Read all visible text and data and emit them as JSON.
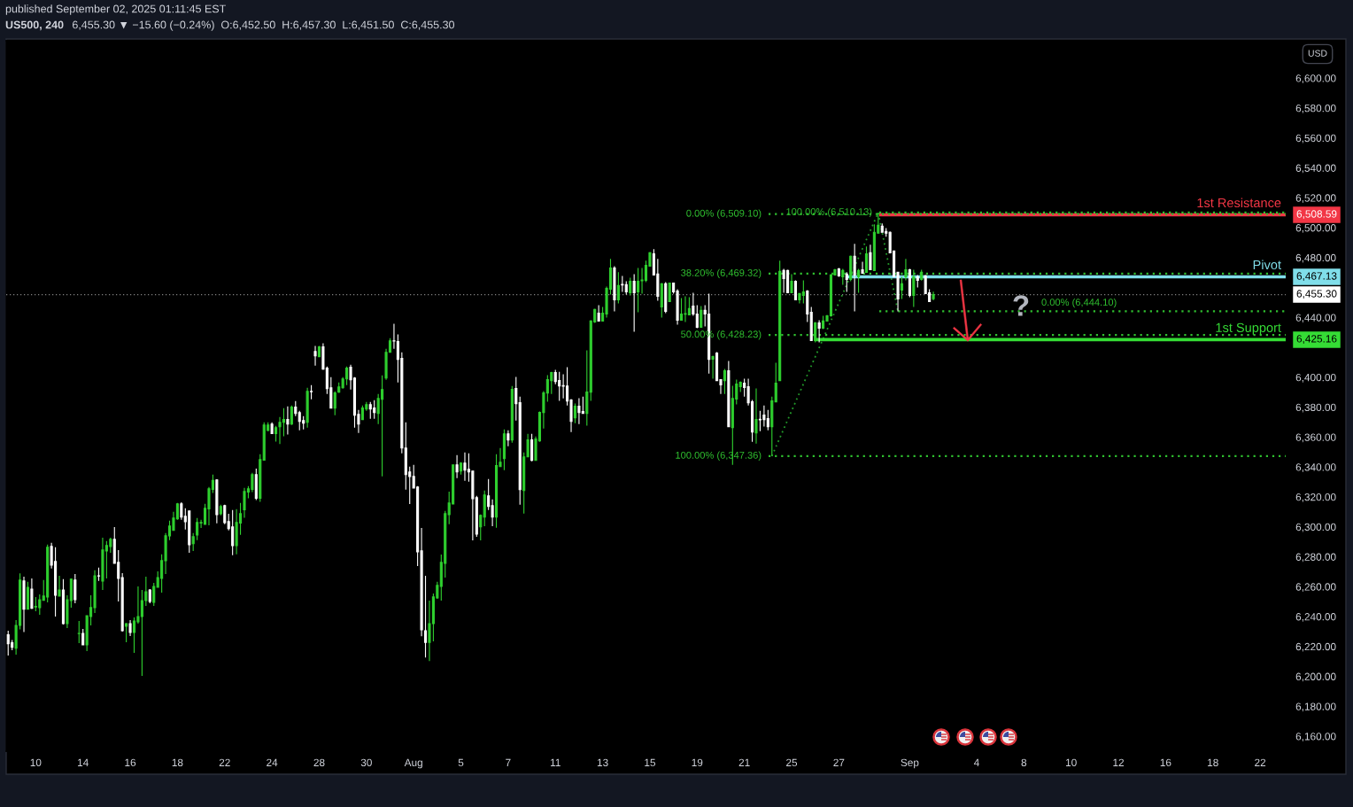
{
  "chart_data": {
    "type": "candlestick",
    "title": "US500, 240",
    "subtitle": "6,455.30 ▼ −15.60 (−0.24%)  O:6,452.50  H:6,457.30  L:6,451.50  C:6,455.30",
    "ylabel": "USD",
    "annotations": [
      "published September 02, 2025 01:11:45 EST",
      "?",
      "6,508.59",
      "6,467.13",
      "6,455.30",
      "6,425.16"
    ],
    "categories": [
      null,
      null,
      null,
      null,
      null,
      null,
      null,
      "10",
      null,
      null,
      null,
      null,
      null,
      null,
      null,
      null,
      null,
      null,
      null,
      "14",
      null,
      null,
      null,
      null,
      null,
      null,
      null,
      null,
      null,
      null,
      null,
      "16",
      null,
      null,
      null,
      null,
      null,
      null,
      null,
      null,
      null,
      null,
      null,
      "18",
      null,
      null,
      null,
      null,
      null,
      null,
      null,
      null,
      null,
      null,
      null,
      "22",
      null,
      null,
      null,
      null,
      null,
      null,
      null,
      null,
      null,
      null,
      null,
      "24",
      null,
      null,
      null,
      null,
      null,
      null,
      null,
      null,
      null,
      null,
      null,
      "28",
      null,
      null,
      null,
      null,
      null,
      null,
      null,
      null,
      null,
      null,
      null,
      "30",
      null,
      null,
      null,
      null,
      null,
      null,
      null,
      null,
      null,
      null,
      null,
      "Aug",
      null,
      null,
      null,
      null,
      null,
      null,
      null,
      null,
      null,
      null,
      null,
      "5",
      null,
      null,
      null,
      null,
      null,
      null,
      null,
      null,
      null,
      null,
      null,
      "7",
      null,
      null,
      null,
      null,
      null,
      null,
      null,
      null,
      null,
      null,
      null,
      "11",
      null,
      null,
      null,
      null,
      null,
      null,
      null,
      null,
      null,
      null,
      null,
      "13",
      null,
      null,
      null,
      null,
      null,
      null,
      null,
      null,
      null,
      null,
      null,
      "15",
      null,
      null,
      null,
      null,
      null,
      null,
      null,
      null,
      null,
      null,
      null,
      "19",
      null,
      null,
      null,
      null,
      null,
      null,
      null,
      null,
      null,
      null,
      null,
      "21",
      null,
      null,
      null,
      null,
      null,
      null,
      null,
      null,
      null,
      null,
      null,
      "25",
      null,
      null,
      null,
      null,
      null,
      null,
      null,
      null,
      null,
      null,
      null,
      "27",
      null,
      null,
      null,
      null,
      null,
      null,
      null,
      null,
      null,
      null,
      null,
      null,
      null,
      null,
      null,
      null,
      null,
      "Sep",
      null,
      null,
      null,
      null,
      null,
      null,
      null,
      null,
      null,
      null,
      null,
      null,
      null,
      null,
      null,
      null,
      "4",
      null,
      null,
      null,
      null,
      null,
      null,
      null,
      null,
      null,
      null,
      null,
      "8",
      null,
      null,
      null,
      null,
      null,
      null,
      null,
      null,
      null,
      null,
      null,
      "10",
      null,
      null,
      null,
      null,
      null,
      null,
      null,
      null,
      null,
      null,
      null,
      "12",
      null,
      null,
      null,
      null,
      null,
      null,
      null,
      null,
      null,
      null,
      null,
      "16",
      null,
      null,
      null,
      null,
      null,
      null,
      null,
      null,
      null,
      null,
      null,
      "18",
      null,
      null,
      null,
      null,
      null,
      null,
      null,
      null,
      null,
      null,
      null,
      "22",
      null,
      null,
      null,
      null,
      null,
      null
    ],
    "ohlc": [
      [
        6227.8,
        6230.6,
        6214.0,
        6221.9
      ],
      [
        6222.5,
        6224.4,
        6217.5,
        6219.5
      ],
      [
        6218.9,
        6237.7,
        6214.5,
        6234.1
      ],
      [
        6234.1,
        6268.9,
        6231.4,
        6264.4
      ],
      [
        6263.8,
        6266.7,
        6229.6,
        6245.0
      ],
      [
        6245.0,
        6263.2,
        6244.6,
        6259.6
      ],
      [
        6258.4,
        6265.5,
        6245.0,
        6245.6
      ],
      [
        6246.4,
        6253.1,
        6243.6,
        6246.8
      ],
      [
        6246.0,
        6254.9,
        6241.2,
        6251.3
      ],
      [
        6250.9,
        6264.4,
        6250.7,
        6253.7
      ],
      [
        6253.1,
        6288.1,
        6249.5,
        6286.3
      ],
      [
        6286.9,
        6289.3,
        6272.1,
        6274.4
      ],
      [
        6276.8,
        6286.3,
        6240.0,
        6254.3
      ],
      [
        6253.7,
        6267.3,
        6253.5,
        6257.8
      ],
      [
        6257.8,
        6265.0,
        6234.7,
        6235.3
      ],
      [
        6235.3,
        6254.3,
        6232.3,
        6251.3
      ],
      [
        6250.7,
        6265.5,
        6246.0,
        6265.0
      ],
      [
        6264.4,
        6268.5,
        6248.9,
        6251.3
      ],
      [
        6228.6,
        6237.1,
        6222.3,
        6228.8
      ],
      [
        6228.8,
        6231.7,
        6220.9,
        6221.1
      ],
      [
        6221.1,
        6240.8,
        6216.9,
        6240.6
      ],
      [
        6240.0,
        6254.3,
        6234.1,
        6246.0
      ],
      [
        6246.0,
        6270.9,
        6242.4,
        6267.3
      ],
      [
        6267.3,
        6272.7,
        6263.8,
        6267.1
      ],
      [
        6263.8,
        6292.8,
        6257.8,
        6284.5
      ],
      [
        6283.9,
        6290.5,
        6265.5,
        6287.5
      ],
      [
        6286.9,
        6292.8,
        6282.7,
        6291.6
      ],
      [
        6291.6,
        6299.9,
        6275.4,
        6275.6
      ],
      [
        6276.2,
        6284.5,
        6250.1,
        6265.5
      ],
      [
        6266.1,
        6269.1,
        6230.0,
        6230.6
      ],
      [
        6233.5,
        6235.7,
        6222.8,
        6235.3
      ],
      [
        6235.3,
        6237.7,
        6227.0,
        6229.4
      ],
      [
        6229.4,
        6239.5,
        6215.7,
        6237.1
      ],
      [
        6236.5,
        6260.2,
        6235.3,
        6240.0
      ],
      [
        6240.0,
        6257.8,
        6200.3,
        6250.7
      ],
      [
        6250.7,
        6266.7,
        6247.2,
        6256.6
      ],
      [
        6257.8,
        6258.4,
        6248.9,
        6250.1
      ],
      [
        6249.5,
        6262.6,
        6247.2,
        6260.2
      ],
      [
        6259.6,
        6270.3,
        6259.4,
        6266.1
      ],
      [
        6265.5,
        6281.6,
        6256.0,
        6277.4
      ],
      [
        6277.4,
        6295.8,
        6268.5,
        6294.0
      ],
      [
        6294.0,
        6304.1,
        6291.1,
        6300.5
      ],
      [
        6297.6,
        6310.0,
        6297.4,
        6305.9
      ],
      [
        6305.3,
        6316.0,
        6304.7,
        6315.4
      ],
      [
        6315.4,
        6316.5,
        6304.7,
        6306.5
      ],
      [
        6307.1,
        6312.4,
        6298.2,
        6303.5
      ],
      [
        6310.6,
        6310.8,
        6282.7,
        6288.1
      ],
      [
        6288.7,
        6295.8,
        6283.9,
        6293.4
      ],
      [
        6294.6,
        6305.9,
        6291.1,
        6302.9
      ],
      [
        6302.5,
        6304.7,
        6299.3,
        6302.9
      ],
      [
        6301.7,
        6315.4,
        6301.5,
        6312.4
      ],
      [
        6312.0,
        6326.6,
        6301.1,
        6325.4
      ],
      [
        6325.1,
        6334.9,
        6322.7,
        6331.0
      ],
      [
        6331.4,
        6331.9,
        6302.3,
        6308.2
      ],
      [
        6308.8,
        6314.8,
        6307.7,
        6313.6
      ],
      [
        6314.2,
        6314.8,
        6301.7,
        6302.9
      ],
      [
        6303.5,
        6308.8,
        6297.6,
        6298.8
      ],
      [
        6299.9,
        6311.2,
        6281.0,
        6287.5
      ],
      [
        6287.5,
        6311.8,
        6281.6,
        6302.9
      ],
      [
        6302.5,
        6316.0,
        6294.6,
        6308.8
      ],
      [
        6311.4,
        6326.0,
        6306.0,
        6323.6
      ],
      [
        6323.2,
        6327.2,
        6319.1,
        6325.4
      ],
      [
        6325.0,
        6336.1,
        6323.2,
        6334.9
      ],
      [
        6334.9,
        6339.0,
        6317.9,
        6319.1
      ],
      [
        6319.1,
        6348.5,
        6316.7,
        6345.0
      ],
      [
        6344.6,
        6369.9,
        6344.4,
        6368.1
      ],
      [
        6364.5,
        6369.9,
        6363.9,
        6368.1
      ],
      [
        6368.7,
        6369.9,
        6362.2,
        6362.4
      ],
      [
        6362.4,
        6367.5,
        6357.0,
        6366.3
      ],
      [
        6366.9,
        6373.4,
        6355.3,
        6369.9
      ],
      [
        6369.9,
        6379.4,
        6360.6,
        6371.7
      ],
      [
        6371.7,
        6380.6,
        6361.8,
        6368.7
      ],
      [
        6368.7,
        6381.1,
        6368.1,
        6380.0
      ],
      [
        6380.0,
        6384.1,
        6374.0,
        6375.8
      ],
      [
        6376.4,
        6377.6,
        6364.5,
        6370.5
      ],
      [
        6371.1,
        6374.0,
        6365.1,
        6369.3
      ],
      [
        6369.9,
        6393.0,
        6366.3,
        6390.6
      ],
      [
        6390.6,
        6394.8,
        6385.3,
        6390.4
      ],
      [
        6417.3,
        6420.9,
        6407.8,
        6414.4
      ],
      [
        6413.8,
        6420.9,
        6413.8,
        6420.3
      ],
      [
        6420.3,
        6422.7,
        6404.9,
        6405.5
      ],
      [
        6406.1,
        6407.2,
        6388.9,
        6392.4
      ],
      [
        6393.0,
        6400.1,
        6379.2,
        6379.4
      ],
      [
        6379.4,
        6390.6,
        6374.6,
        6389.5
      ],
      [
        6390.0,
        6396.6,
        6389.5,
        6393.6
      ],
      [
        6393.0,
        6400.1,
        6392.4,
        6398.9
      ],
      [
        6398.9,
        6407.2,
        6394.8,
        6406.1
      ],
      [
        6406.7,
        6408.4,
        6391.8,
        6398.3
      ],
      [
        6399.5,
        6400.1,
        6366.3,
        6374.6
      ],
      [
        6375.2,
        6378.2,
        6362.8,
        6368.7
      ],
      [
        6371.7,
        6381.1,
        6371.5,
        6379.4
      ],
      [
        6378.8,
        6383.5,
        6377.6,
        6381.7
      ],
      [
        6381.7,
        6383.5,
        6372.3,
        6378.8
      ],
      [
        6379.4,
        6384.7,
        6372.3,
        6376.4
      ],
      [
        6375.8,
        6388.9,
        6368.7,
        6385.9
      ],
      [
        6385.3,
        6401.3,
        6333.7,
        6391.8
      ],
      [
        6399.5,
        6419.1,
        6398.3,
        6416.7
      ],
      [
        6416.7,
        6426.2,
        6416.5,
        6424.4
      ],
      [
        6424.4,
        6435.7,
        6419.1,
        6424.2
      ],
      [
        6423.9,
        6428.6,
        6396.6,
        6412.0
      ],
      [
        6412.6,
        6416.7,
        6349.1,
        6352.7
      ],
      [
        6352.7,
        6369.9,
        6324.8,
        6334.9
      ],
      [
        6336.7,
        6340.2,
        6315.3,
        6333.7
      ],
      [
        6333.7,
        6341.4,
        6325.8,
        6326.0
      ],
      [
        6326.6,
        6327.2,
        6273.8,
        6283.3
      ],
      [
        6283.9,
        6299.3,
        6226.9,
        6231.1
      ],
      [
        6230.5,
        6267.3,
        6212.7,
        6222.8
      ],
      [
        6222.8,
        6250.7,
        6210.3,
        6235.3
      ],
      [
        6235.3,
        6255.4,
        6223.4,
        6253.1
      ],
      [
        6252.5,
        6263.2,
        6251.9,
        6260.8
      ],
      [
        6260.2,
        6281.5,
        6250.7,
        6276.2
      ],
      [
        6275.6,
        6310.6,
        6266.1,
        6308.8
      ],
      [
        6308.2,
        6323.6,
        6301.7,
        6315.9
      ],
      [
        6315.3,
        6341.4,
        6315.3,
        6341.4
      ],
      [
        6341.4,
        6347.9,
        6332.5,
        6336.7
      ],
      [
        6337.3,
        6343.2,
        6334.9,
        6342.6
      ],
      [
        6342.6,
        6349.7,
        6330.8,
        6337.9
      ],
      [
        6338.5,
        6349.1,
        6330.2,
        6336.7
      ],
      [
        6337.3,
        6337.3,
        6291.0,
        6318.9
      ],
      [
        6319.5,
        6320.7,
        6293.4,
        6295.2
      ],
      [
        6300.0,
        6308.3,
        6291.0,
        6307.7
      ],
      [
        6306.5,
        6324.3,
        6300.5,
        6321.3
      ],
      [
        6320.7,
        6332.0,
        6311.2,
        6313.6
      ],
      [
        6314.2,
        6318.3,
        6300.5,
        6306.5
      ],
      [
        6306.5,
        6348.6,
        6299.4,
        6340.9
      ],
      [
        6340.3,
        6352.7,
        6340.1,
        6343.2
      ],
      [
        6345.6,
        6365.2,
        6337.9,
        6362.2
      ],
      [
        6362.2,
        6364.6,
        6353.9,
        6358.1
      ],
      [
        6358.1,
        6394.2,
        6356.3,
        6391.9
      ],
      [
        6392.5,
        6400.2,
        6371.1,
        6382.4
      ],
      [
        6383.0,
        6387.1,
        6314.8,
        6324.9
      ],
      [
        6324.3,
        6349.8,
        6308.9,
        6346.8
      ],
      [
        6346.8,
        6362.2,
        6346.6,
        6358.1
      ],
      [
        6358.1,
        6362.2,
        6343.8,
        6344.4
      ],
      [
        6344.4,
        6360.4,
        6344.2,
        6358.7
      ],
      [
        6357.5,
        6377.1,
        6356.9,
        6376.5
      ],
      [
        6376.5,
        6390.7,
        6365.8,
        6389.5
      ],
      [
        6389.5,
        6401.4,
        6383.6,
        6398.4
      ],
      [
        6397.8,
        6403.7,
        6388.9,
        6403.1
      ],
      [
        6403.1,
        6404.9,
        6395.4,
        6397.2
      ],
      [
        6397.8,
        6403.7,
        6384.2,
        6394.2
      ],
      [
        6394.4,
        6402.0,
        6385.9,
        6394.0
      ],
      [
        6394.2,
        6406.7,
        6381.2,
        6384.2
      ],
      [
        6384.8,
        6385.4,
        6363.4,
        6370.5
      ],
      [
        6372.9,
        6382.4,
        6369.3,
        6380.6
      ],
      [
        6380.6,
        6386.0,
        6368.7,
        6376.5
      ],
      [
        6377.1,
        6387.1,
        6375.7,
        6375.9
      ],
      [
        6375.9,
        6418.0,
        6367.6,
        6390.1
      ],
      [
        6390.1,
        6438.1,
        6384.2,
        6437.6
      ],
      [
        6437.0,
        6445.9,
        6436.4,
        6445.3
      ],
      [
        6442.9,
        6448.2,
        6437.4,
        6437.6
      ],
      [
        6437.6,
        6447.0,
        6437.4,
        6442.9
      ],
      [
        6442.3,
        6460.7,
        6439.9,
        6459.5
      ],
      [
        6458.9,
        6479.1,
        6455.3,
        6473.1
      ],
      [
        6473.1,
        6474.3,
        6444.1,
        6451.8
      ],
      [
        6451.8,
        6470.2,
        6449.4,
        6461.3
      ],
      [
        6462.1,
        6467.8,
        6457.1,
        6461.7
      ],
      [
        6461.9,
        6464.2,
        6455.3,
        6457.1
      ],
      [
        6456.5,
        6466.6,
        6454.7,
        6464.2
      ],
      [
        6464.2,
        6469.0,
        6430.4,
        6456.5
      ],
      [
        6457.1,
        6473.1,
        6443.5,
        6464.2
      ],
      [
        6464.6,
        6473.1,
        6455.9,
        6465.0
      ],
      [
        6464.8,
        6477.9,
        6463.6,
        6474.9
      ],
      [
        6474.3,
        6483.8,
        6474.1,
        6483.2
      ],
      [
        6482.6,
        6485.6,
        6468.2,
        6468.4
      ],
      [
        6469.0,
        6479.1,
        6451.2,
        6454.2
      ],
      [
        6447.0,
        6463.0,
        6439.9,
        6462.5
      ],
      [
        6462.5,
        6463.6,
        6442.9,
        6444.1
      ],
      [
        6450.6,
        6463.0,
        6450.6,
        6463.0
      ],
      [
        6463.0,
        6463.0,
        6455.9,
        6457.1
      ],
      [
        6457.7,
        6458.9,
        6435.2,
        6438.1
      ],
      [
        6438.1,
        6453.0,
        6437.9,
        6442.3
      ],
      [
        6442.1,
        6454.2,
        6436.9,
        6442.5
      ],
      [
        6441.7,
        6453.6,
        6441.5,
        6445.9
      ],
      [
        6447.6,
        6456.5,
        6441.1,
        6442.3
      ],
      [
        6442.3,
        6448.2,
        6432.8,
        6433.4
      ],
      [
        6433.4,
        6447.6,
        6433.2,
        6444.7
      ],
      [
        6444.7,
        6448.2,
        6434.0,
        6442.3
      ],
      [
        6442.3,
        6455.9,
        6402.5,
        6412.0
      ],
      [
        6412.1,
        6414.4,
        6399.0,
        6413.8
      ],
      [
        6416.2,
        6416.8,
        6397.6,
        6397.8
      ],
      [
        6398.4,
        6398.4,
        6388.9,
        6394.9
      ],
      [
        6397.8,
        6405.5,
        6388.9,
        6404.4
      ],
      [
        6404.4,
        6410.9,
        6366.8,
        6367.0
      ],
      [
        6366.4,
        6394.3,
        6341.5,
        6385.9
      ],
      [
        6385.4,
        6398.4,
        6381.8,
        6395.5
      ],
      [
        6393.7,
        6397.2,
        6390.1,
        6396.6
      ],
      [
        6396.0,
        6399.0,
        6387.1,
        6393.1
      ],
      [
        6393.7,
        6399.0,
        6381.2,
        6383.0
      ],
      [
        6383.6,
        6384.8,
        6356.9,
        6363.4
      ],
      [
        6362.8,
        6392.5,
        6355.7,
        6371.7
      ],
      [
        6371.9,
        6377.6,
        6364.0,
        6371.5
      ],
      [
        6374.7,
        6381.2,
        6367.0,
        6371.7
      ],
      [
        6372.3,
        6378.2,
        6364.6,
        6367.0
      ],
      [
        6367.0,
        6387.1,
        6347.4,
        6384.2
      ],
      [
        6383.6,
        6409.7,
        6383.4,
        6396.0
      ],
      [
        6397.8,
        6477.9,
        6397.6,
        6470.8
      ],
      [
        6471.4,
        6472.5,
        6456.5,
        6466.0
      ],
      [
        6471.4,
        6471.9,
        6456.3,
        6456.5
      ],
      [
        6456.5,
        6469.0,
        6456.3,
        6464.2
      ],
      [
        6464.2,
        6464.8,
        6451.6,
        6451.8
      ],
      [
        6451.8,
        6456.0,
        6449.4,
        6456.0
      ],
      [
        6454.8,
        6464.8,
        6449.4,
        6457.1
      ],
      [
        6457.7,
        6458.3,
        6437.0,
        6442.3
      ],
      [
        6443.5,
        6447.0,
        6424.3,
        6424.5
      ],
      [
        6424.5,
        6437.0,
        6423.3,
        6436.4
      ],
      [
        6436.4,
        6438.1,
        6423.3,
        6432.8
      ],
      [
        6432.8,
        6441.1,
        6432.2,
        6437.6
      ],
      [
        6437.6,
        6441.7,
        6437.4,
        6441.1
      ],
      [
        6441.1,
        6469.0,
        6440.5,
        6468.4
      ],
      [
        6468.4,
        6472.5,
        6468.2,
        6471.9
      ],
      [
        6472.5,
        6473.1,
        6467.2,
        6467.8
      ],
      [
        6467.2,
        6472.5,
        6461.9,
        6471.4
      ],
      [
        6469.0,
        6470.2,
        6457.1,
        6465.4
      ],
      [
        6465.4,
        6481.4,
        6464.2,
        6480.9
      ],
      [
        6480.9,
        6489.2,
        6444.1,
        6468.4
      ],
      [
        6467.2,
        6472.5,
        6456.5,
        6471.4
      ],
      [
        6471.9,
        6477.3,
        6469.4,
        6469.6
      ],
      [
        6470.2,
        6487.4,
        6470.0,
        6482.6
      ],
      [
        6483.2,
        6488.6,
        6471.8,
        6472.0
      ],
      [
        6471.4,
        6502.2,
        6471.2,
        6496.9
      ],
      [
        6496.3,
        6510.1,
        6496.1,
        6501.6
      ],
      [
        6501.0,
        6502.8,
        6496.7,
        6496.9
      ],
      [
        6497.5,
        6499.8,
        6493.9,
        6496.3
      ],
      [
        6496.9,
        6497.5,
        6483.0,
        6483.2
      ],
      [
        6484.4,
        6484.4,
        6467.0,
        6467.2
      ],
      [
        6470.2,
        6470.2,
        6444.1,
        6452.4
      ],
      [
        6458.3,
        6467.2,
        6452.4,
        6462.5
      ],
      [
        6467.2,
        6479.1,
        6464.8,
        6471.9
      ],
      [
        6471.9,
        6472.5,
        6453.6,
        6454.8
      ],
      [
        6454.8,
        6471.9,
        6447.0,
        6467.2
      ],
      [
        6467.2,
        6468.4,
        6460.1,
        6464.8
      ],
      [
        6465.4,
        6471.9,
        6464.6,
        6470.2
      ],
      [
        6467.8,
        6468.4,
        6455.7,
        6455.9
      ],
      [
        6456.5,
        6458.9,
        6450.4,
        6450.6
      ],
      [
        6452.5,
        6457.3,
        6451.5,
        6455.3
      ],
      null,
      null,
      null,
      null,
      null,
      null,
      null,
      null,
      null,
      null,
      null,
      null,
      null,
      null,
      null,
      null,
      null,
      null,
      null,
      null,
      null,
      null,
      null,
      null,
      null,
      null,
      null,
      null,
      null,
      null,
      null,
      null,
      null,
      null,
      null,
      null,
      null,
      null,
      null,
      null,
      null,
      null,
      null,
      null,
      null,
      null,
      null,
      null,
      null,
      null,
      null,
      null,
      null,
      null,
      null,
      null,
      null,
      null,
      null,
      null,
      null,
      null,
      null,
      null,
      null,
      null,
      null,
      null,
      null,
      null,
      null,
      null,
      null,
      null,
      null,
      null,
      null,
      null,
      null,
      null,
      null,
      null,
      null,
      null,
      null,
      null,
      null,
      null,
      null
    ],
    "colors": [
      "#ffffff",
      "#ffffff",
      "#2fd02f",
      "#2fd02f",
      "#ffffff",
      "#2fd02f",
      "#ffffff",
      "#2fd02f",
      "#2fd02f",
      "#2fd02f",
      "#2fd02f",
      "#ffffff",
      "#ffffff",
      "#2fd02f",
      "#ffffff",
      "#2fd02f",
      "#2fd02f",
      "#ffffff",
      "#2fd02f",
      "#ffffff",
      "#2fd02f",
      "#2fd02f",
      "#2fd02f",
      "#ffffff",
      "#2fd02f",
      "#2fd02f",
      "#2fd02f",
      "#ffffff",
      "#ffffff",
      "#ffffff",
      "#2fd02f",
      "#ffffff",
      "#2fd02f",
      "#2fd02f",
      "#2fd02f",
      "#2fd02f",
      "#ffffff",
      "#2fd02f",
      "#2fd02f",
      "#2fd02f",
      "#2fd02f",
      "#2fd02f",
      "#2fd02f",
      "#2fd02f",
      "#ffffff",
      "#ffffff",
      "#ffffff",
      "#2fd02f",
      "#2fd02f",
      "#2fd02f",
      "#2fd02f",
      "#2fd02f",
      "#2fd02f",
      "#ffffff",
      "#2fd02f",
      "#ffffff",
      "#ffffff",
      "#ffffff",
      "#2fd02f",
      "#2fd02f",
      "#2fd02f",
      "#2fd02f",
      "#2fd02f",
      "#ffffff",
      "#2fd02f",
      "#2fd02f",
      "#2fd02f",
      "#ffffff",
      "#2fd02f",
      "#2fd02f",
      "#2fd02f",
      "#ffffff",
      "#2fd02f",
      "#ffffff",
      "#ffffff",
      "#ffffff",
      "#2fd02f",
      "#ffffff",
      "#ffffff",
      "#2fd02f",
      "#ffffff",
      "#ffffff",
      "#ffffff",
      "#2fd02f",
      "#2fd02f",
      "#2fd02f",
      "#2fd02f",
      "#ffffff",
      "#ffffff",
      "#ffffff",
      "#2fd02f",
      "#2fd02f",
      "#ffffff",
      "#ffffff",
      "#2fd02f",
      "#2fd02f",
      "#2fd02f",
      "#2fd02f",
      "#ffffff",
      "#ffffff",
      "#ffffff",
      "#ffffff",
      "#ffffff",
      "#ffffff",
      "#ffffff",
      "#ffffff",
      "#ffffff",
      "#2fd02f",
      "#2fd02f",
      "#2fd02f",
      "#2fd02f",
      "#2fd02f",
      "#2fd02f",
      "#2fd02f",
      "#ffffff",
      "#2fd02f",
      "#ffffff",
      "#ffffff",
      "#ffffff",
      "#ffffff",
      "#2fd02f",
      "#2fd02f",
      "#ffffff",
      "#ffffff",
      "#2fd02f",
      "#2fd02f",
      "#2fd02f",
      "#ffffff",
      "#2fd02f",
      "#ffffff",
      "#ffffff",
      "#2fd02f",
      "#2fd02f",
      "#ffffff",
      "#2fd02f",
      "#2fd02f",
      "#2fd02f",
      "#2fd02f",
      "#2fd02f",
      "#ffffff",
      "#ffffff",
      "#ffffff",
      "#ffffff",
      "#ffffff",
      "#2fd02f",
      "#ffffff",
      "#ffffff",
      "#2fd02f",
      "#2fd02f",
      "#2fd02f",
      "#ffffff",
      "#2fd02f",
      "#2fd02f",
      "#2fd02f",
      "#ffffff",
      "#2fd02f",
      "#ffffff",
      "#ffffff",
      "#2fd02f",
      "#ffffff",
      "#2fd02f",
      "#2fd02f",
      "#2fd02f",
      "#2fd02f",
      "#ffffff",
      "#ffffff",
      "#2fd02f",
      "#ffffff",
      "#2fd02f",
      "#ffffff",
      "#ffffff",
      "#2fd02f",
      "#2fd02f",
      "#2fd02f",
      "#ffffff",
      "#ffffff",
      "#2fd02f",
      "#ffffff",
      "#ffffff",
      "#2fd02f",
      "#ffffff",
      "#ffffff",
      "#2fd02f",
      "#ffffff",
      "#2fd02f",
      "#2fd02f",
      "#2fd02f",
      "#ffffff",
      "#ffffff",
      "#ffffff",
      "#2fd02f",
      "#ffffff",
      "#ffffff",
      "#ffffff",
      "#2fd02f",
      "#2fd02f",
      "#2fd02f",
      "#ffffff",
      "#ffffff",
      "#2fd02f",
      "#ffffff",
      "#2fd02f",
      "#2fd02f",
      "#ffffff",
      "#ffffff",
      "#2fd02f",
      "#ffffff",
      "#2fd02f",
      "#2fd02f",
      "#2fd02f",
      "#2fd02f",
      "#ffffff",
      "#2fd02f",
      "#ffffff",
      "#2fd02f",
      "#ffffff",
      "#2fd02f",
      "#ffffff",
      "#2fd02f",
      "#ffffff",
      "#2fd02f",
      "#2fd02f",
      "#ffffff",
      "#ffffff",
      "#ffffff",
      "#ffffff",
      "#ffffff",
      "#2fd02f",
      "#2fd02f",
      "#ffffff",
      "#2fd02f",
      "#ffffff",
      "#2fd02f",
      "#ffffff",
      "#ffffff",
      "#2fd02f",
      null,
      null,
      null,
      null,
      null,
      null,
      null,
      null,
      null,
      null,
      null,
      null,
      null,
      null,
      null,
      null,
      null,
      null,
      null,
      null,
      null,
      null,
      null,
      null,
      null,
      null,
      null,
      null,
      null,
      null,
      null,
      null,
      null,
      null,
      null,
      null,
      null,
      null,
      null,
      null,
      null,
      null,
      null,
      null,
      null,
      null,
      null,
      null,
      null,
      null,
      null,
      null,
      null,
      null,
      null,
      null,
      null,
      null,
      null,
      null,
      null,
      null,
      null,
      null,
      null,
      null,
      null,
      null,
      null,
      null,
      null,
      null,
      null,
      null,
      null,
      null,
      null,
      null,
      null,
      null,
      null,
      null,
      null,
      null,
      null,
      null,
      null,
      null,
      null
    ],
    "series": [
      {
        "type": "line",
        "color": "#229b2a",
        "line_style": "dotted",
        "values": [
          null,
          null,
          null,
          null,
          null,
          null,
          null,
          null,
          null,
          null,
          null,
          null,
          null,
          null,
          null,
          null,
          null,
          null,
          null,
          null,
          null,
          null,
          null,
          null,
          null,
          null,
          null,
          null,
          null,
          null,
          null,
          null,
          null,
          null,
          null,
          null,
          null,
          null,
          null,
          null,
          null,
          null,
          null,
          null,
          null,
          null,
          null,
          null,
          null,
          null,
          null,
          null,
          null,
          null,
          null,
          null,
          null,
          null,
          null,
          null,
          null,
          null,
          null,
          null,
          null,
          null,
          null,
          null,
          null,
          null,
          null,
          null,
          null,
          null,
          null,
          null,
          null,
          null,
          null,
          null,
          null,
          null,
          null,
          null,
          null,
          null,
          null,
          null,
          null,
          null,
          null,
          null,
          null,
          null,
          null,
          null,
          null,
          null,
          null,
          null,
          null,
          null,
          null,
          null,
          null,
          null,
          null,
          null,
          null,
          null,
          null,
          null,
          null,
          null,
          null,
          null,
          null,
          null,
          null,
          null,
          null,
          null,
          null,
          null,
          null,
          null,
          null,
          null,
          null,
          null,
          null,
          null,
          null,
          null,
          null,
          null,
          null,
          null,
          null,
          null,
          null,
          null,
          null,
          null,
          null,
          null,
          null,
          null,
          null,
          null,
          null,
          null,
          null,
          null,
          null,
          null,
          null,
          null,
          null,
          null,
          null,
          null,
          null,
          null,
          null,
          null,
          null,
          null,
          null,
          null,
          null,
          null,
          null,
          null,
          null,
          null,
          null,
          null,
          null,
          null,
          null,
          null,
          null,
          null,
          null,
          null,
          null,
          null,
          null,
          null,
          null,
          null,
          null,
          null,
          6347.36,
          null,
          null,
          null,
          null,
          null,
          null,
          null,
          null,
          null,
          null,
          null,
          null,
          null,
          null,
          null,
          null,
          null,
          null,
          null,
          null,
          null,
          null,
          null,
          null,
          null,
          null,
          6510.13,
          null,
          null,
          null,
          null,
          6444.1,
          null,
          null,
          null,
          null,
          null,
          null,
          null,
          null,
          null,
          null,
          null,
          null,
          null,
          null,
          null,
          null,
          null,
          null,
          null,
          null,
          null,
          null,
          null,
          null,
          null,
          null,
          null,
          null,
          null,
          null,
          null,
          null,
          null,
          null,
          null,
          null,
          null,
          null,
          null,
          null,
          null,
          null,
          null,
          null,
          null,
          null,
          null,
          null,
          null,
          null,
          null,
          null,
          null,
          null,
          null,
          null,
          null,
          null,
          null,
          null,
          null,
          null,
          null,
          null,
          null,
          null,
          null,
          null,
          null,
          null,
          null,
          null,
          null,
          null,
          null,
          null,
          null,
          null,
          null,
          null,
          null,
          null,
          null,
          null,
          null,
          null,
          null,
          null,
          null,
          null,
          null,
          null,
          null,
          null,
          null,
          null,
          null,
          null
        ]
      }
    ],
    "ref_lines": [
      {
        "axis": "y",
        "value": 6508.59,
        "label": "1st Resistance",
        "color": "#f23645",
        "line_style": "solid"
      },
      {
        "axis": "y",
        "value": 6467.13,
        "label": "Pivot",
        "color": "#80deea",
        "line_style": "solid"
      },
      {
        "axis": "y",
        "value": 6425.16,
        "label": "1st Support",
        "color": "#35dc35",
        "line_style": "solid"
      },
      {
        "axis": "y",
        "value": 6455.3,
        "color": "#ffffff",
        "line_style": "dotted"
      },
      {
        "axis": "y",
        "value": 6509.1,
        "label": "0.00% (6,509.10)",
        "color": "#2fbf2f",
        "line_style": "dotted"
      },
      {
        "axis": "y",
        "value": 6428.23,
        "label": "50.00% (6,428.23)",
        "color": "#2fbf2f",
        "line_style": "dotted"
      },
      {
        "axis": "y",
        "value": 6347.36,
        "label": "100.00% (6,347.36)",
        "color": "#2fbf2f",
        "line_style": "dotted"
      },
      {
        "axis": "y",
        "value": 6510.13,
        "label": "100.00% (6,510.13)",
        "color": "#2fbf2f",
        "line_style": "dotted"
      },
      {
        "axis": "y",
        "value": 6469.32,
        "label": "38.20% (6,469.32)",
        "color": "#2fbf2f",
        "line_style": "dotted"
      },
      {
        "axis": "y",
        "value": 6444.1,
        "label": "0.00% (6,444.10)",
        "color": "#2fbf2f",
        "line_style": "dotted"
      }
    ],
    "ylim": [
      6150,
      6625
    ],
    "yticks": [
      {
        "value": 6160,
        "label": "6,160.00"
      },
      {
        "value": 6180,
        "label": "6,180.00"
      },
      {
        "value": 6200,
        "label": "6,200.00"
      },
      {
        "value": 6220,
        "label": "6,220.00"
      },
      {
        "value": 6240,
        "label": "6,240.00"
      },
      {
        "value": 6260,
        "label": "6,260.00"
      },
      {
        "value": 6280,
        "label": "6,280.00"
      },
      {
        "value": 6300,
        "label": "6,300.00"
      },
      {
        "value": 6320,
        "label": "6,320.00"
      },
      {
        "value": 6340,
        "label": "6,340.00"
      },
      {
        "value": 6360,
        "label": "6,360.00"
      },
      {
        "value": 6380,
        "label": "6,380.00"
      },
      {
        "value": 6400,
        "label": "6,400.00"
      },
      {
        "value": 6440,
        "label": "6,440.00"
      },
      {
        "value": 6480,
        "label": "6,480.00"
      },
      {
        "value": 6500,
        "label": "6,500.00"
      },
      {
        "value": 6520,
        "label": "6,520.00"
      },
      {
        "value": 6540,
        "label": "6,540.00"
      },
      {
        "value": 6560,
        "label": "6,560.00"
      },
      {
        "value": 6580,
        "label": "6,580.00"
      },
      {
        "value": 6600,
        "label": "6,600.00"
      }
    ]
  }
}
